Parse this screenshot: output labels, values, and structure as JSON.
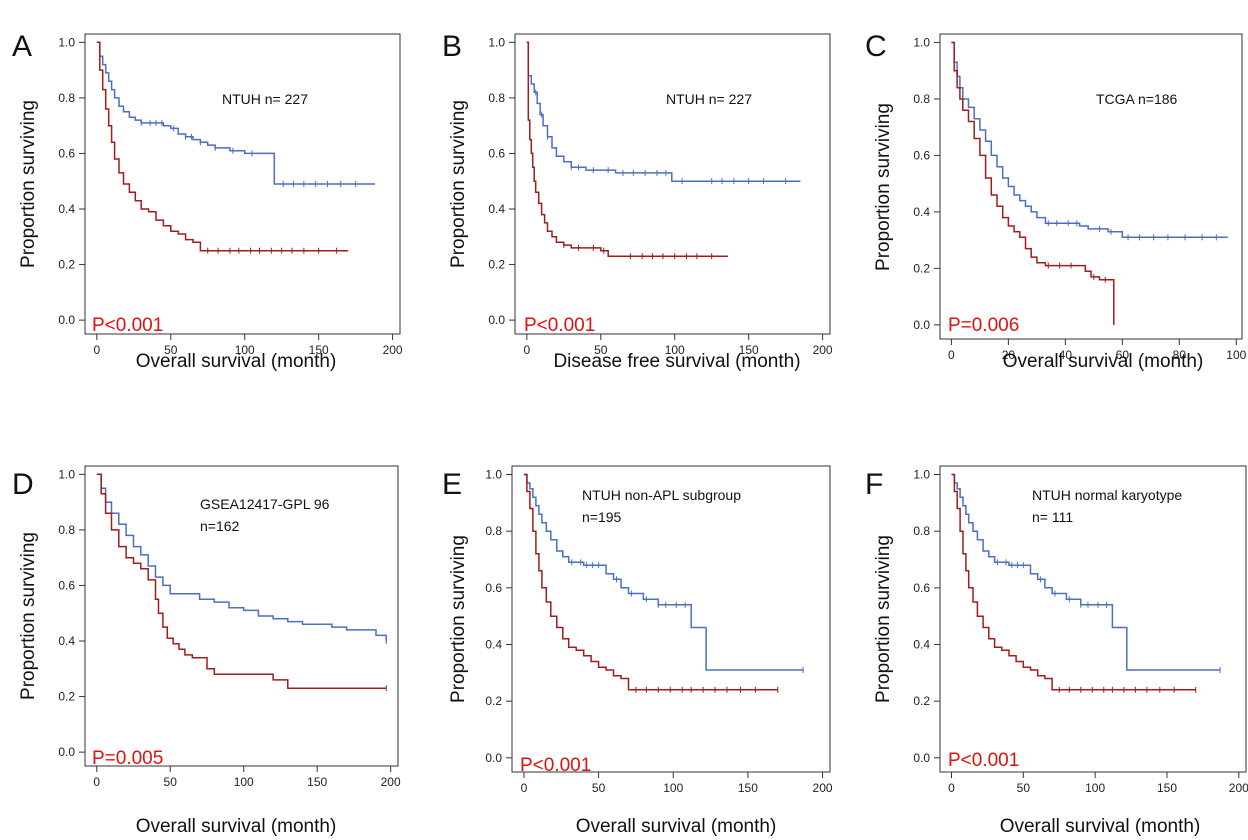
{
  "figure": {
    "panels": [
      "A",
      "B",
      "C",
      "D",
      "E",
      "F"
    ]
  },
  "colors": {
    "low_group": "#4a6fc3",
    "high_group": "#a11c1c",
    "pvalue": "#e01010",
    "frame": "#333333"
  },
  "chart_data": [
    {
      "type": "line",
      "panel": "A",
      "annotation": [
        "NTUH  n= 227"
      ],
      "pvalue": "P<0.001",
      "xlabel": "Overall survival (month)",
      "ylabel": "Proportion surviving",
      "xlim": [
        -8,
        205
      ],
      "ylim": [
        -0.05,
        1.03
      ],
      "xticks": [
        0,
        50,
        100,
        150,
        200
      ],
      "yticks": [
        0.0,
        0.2,
        0.4,
        0.6,
        0.8,
        1.0
      ],
      "series": [
        {
          "color": "#4a6fc3",
          "x": [
            0,
            2,
            4,
            6,
            8,
            10,
            12,
            15,
            18,
            22,
            26,
            30,
            35,
            40,
            45,
            50,
            55,
            60,
            65,
            70,
            75,
            80,
            90,
            100,
            110,
            119,
            120,
            130,
            150,
            188
          ],
          "y": [
            1.0,
            0.95,
            0.92,
            0.89,
            0.86,
            0.83,
            0.8,
            0.77,
            0.75,
            0.73,
            0.72,
            0.71,
            0.71,
            0.71,
            0.7,
            0.69,
            0.67,
            0.66,
            0.65,
            0.64,
            0.63,
            0.62,
            0.61,
            0.6,
            0.6,
            0.6,
            0.49,
            0.49,
            0.49,
            0.49
          ],
          "censors": [
            30,
            36,
            40,
            44,
            52,
            60,
            64,
            70,
            80,
            92,
            105,
            126,
            133,
            140,
            148,
            156,
            165,
            175
          ]
        },
        {
          "color": "#a11c1c",
          "x": [
            0,
            2,
            4,
            6,
            8,
            10,
            12,
            15,
            18,
            22,
            26,
            30,
            35,
            40,
            45,
            50,
            55,
            60,
            65,
            70,
            80,
            100,
            130,
            170
          ],
          "y": [
            1.0,
            0.9,
            0.83,
            0.76,
            0.7,
            0.64,
            0.58,
            0.53,
            0.49,
            0.46,
            0.43,
            0.4,
            0.39,
            0.36,
            0.34,
            0.32,
            0.31,
            0.29,
            0.28,
            0.25,
            0.25,
            0.25,
            0.25,
            0.25
          ],
          "censors": [
            75,
            82,
            90,
            96,
            104,
            110,
            118,
            125,
            132,
            140,
            150,
            162
          ]
        }
      ]
    },
    {
      "type": "line",
      "panel": "B",
      "annotation": [
        "NTUH n= 227"
      ],
      "pvalue": "P<0.001",
      "xlabel": "Disease free survival (month)",
      "ylabel": "Proportion surviving",
      "xlim": [
        -8,
        205
      ],
      "ylim": [
        -0.05,
        1.03
      ],
      "xticks": [
        0,
        50,
        100,
        150,
        200
      ],
      "yticks": [
        0.0,
        0.2,
        0.4,
        0.6,
        0.8,
        1.0
      ],
      "series": [
        {
          "color": "#4a6fc3",
          "x": [
            0,
            1,
            3,
            5,
            7,
            9,
            11,
            14,
            17,
            20,
            25,
            30,
            40,
            50,
            60,
            70,
            80,
            90,
            97,
            98,
            120,
            150,
            185
          ],
          "y": [
            1.0,
            0.88,
            0.85,
            0.82,
            0.78,
            0.74,
            0.7,
            0.66,
            0.62,
            0.59,
            0.57,
            0.55,
            0.54,
            0.54,
            0.53,
            0.53,
            0.53,
            0.53,
            0.53,
            0.5,
            0.5,
            0.5,
            0.5
          ],
          "censors": [
            6,
            10,
            14,
            30,
            35,
            45,
            55,
            65,
            72,
            80,
            88,
            94,
            105,
            125,
            132,
            140,
            150,
            160,
            175
          ]
        },
        {
          "color": "#a11c1c",
          "x": [
            0,
            1,
            2,
            3,
            4,
            5,
            6,
            8,
            10,
            12,
            14,
            17,
            20,
            25,
            30,
            40,
            50,
            55,
            60,
            80,
            100,
            136
          ],
          "y": [
            1.0,
            0.72,
            0.65,
            0.6,
            0.55,
            0.5,
            0.46,
            0.42,
            0.38,
            0.35,
            0.32,
            0.3,
            0.28,
            0.27,
            0.26,
            0.26,
            0.25,
            0.23,
            0.23,
            0.23,
            0.23,
            0.23
          ],
          "censors": [
            25,
            35,
            45,
            52,
            70,
            78,
            85,
            92,
            100,
            108,
            115,
            125
          ]
        }
      ]
    },
    {
      "type": "line",
      "panel": "C",
      "annotation": [
        "TCGA n=186"
      ],
      "pvalue": "P=0.006",
      "xlabel": "Overall survival (month)",
      "ylabel": "Proportion surviving",
      "xlim": [
        -4,
        102
      ],
      "ylim": [
        -0.05,
        1.03
      ],
      "xticks": [
        0,
        20,
        40,
        60,
        80,
        100
      ],
      "yticks": [
        0.0,
        0.2,
        0.4,
        0.6,
        0.8,
        1.0
      ],
      "series": [
        {
          "color": "#4a6fc3",
          "x": [
            0,
            1,
            2,
            3,
            4,
            6,
            8,
            10,
            12,
            14,
            16,
            18,
            20,
            22,
            24,
            26,
            28,
            30,
            33,
            36,
            40,
            45,
            48,
            50,
            55,
            60,
            70,
            80,
            97
          ],
          "y": [
            1.0,
            0.93,
            0.88,
            0.84,
            0.8,
            0.77,
            0.73,
            0.69,
            0.65,
            0.6,
            0.56,
            0.52,
            0.49,
            0.46,
            0.44,
            0.42,
            0.4,
            0.38,
            0.36,
            0.36,
            0.36,
            0.35,
            0.34,
            0.34,
            0.33,
            0.31,
            0.31,
            0.31,
            0.31
          ],
          "censors": [
            34,
            37,
            41,
            44,
            52,
            56,
            62,
            66,
            71,
            76,
            82,
            88,
            93
          ]
        },
        {
          "color": "#a11c1c",
          "x": [
            0,
            1,
            2,
            3,
            4,
            6,
            8,
            10,
            12,
            14,
            16,
            18,
            20,
            22,
            24,
            26,
            28,
            30,
            33,
            36,
            40,
            45,
            47,
            49,
            52,
            56,
            57,
            57
          ],
          "y": [
            1.0,
            0.9,
            0.84,
            0.8,
            0.76,
            0.72,
            0.66,
            0.6,
            0.52,
            0.46,
            0.42,
            0.38,
            0.35,
            0.33,
            0.31,
            0.27,
            0.24,
            0.22,
            0.21,
            0.21,
            0.21,
            0.21,
            0.19,
            0.17,
            0.16,
            0.16,
            0.16,
            0.0
          ],
          "censors": [
            34,
            38,
            42,
            50,
            54
          ]
        }
      ]
    },
    {
      "type": "line",
      "panel": "D",
      "annotation": [
        "GSEA12417-GPL 96",
        "n=162"
      ],
      "pvalue": "P=0.005",
      "xlabel": "Overall survival (month)",
      "ylabel": "Proportion surviving",
      "xlim": [
        -8,
        205
      ],
      "ylim": [
        -0.05,
        1.03
      ],
      "xticks": [
        0,
        50,
        100,
        150,
        200
      ],
      "yticks": [
        0.0,
        0.2,
        0.4,
        0.6,
        0.8,
        1.0
      ],
      "series": [
        {
          "color": "#4a6fc3",
          "x": [
            0,
            3,
            6,
            10,
            15,
            20,
            25,
            30,
            35,
            40,
            45,
            50,
            60,
            70,
            80,
            90,
            100,
            110,
            120,
            130,
            140,
            150,
            160,
            170,
            180,
            190,
            197
          ],
          "y": [
            1.0,
            0.95,
            0.9,
            0.86,
            0.82,
            0.78,
            0.74,
            0.71,
            0.67,
            0.63,
            0.6,
            0.57,
            0.57,
            0.55,
            0.54,
            0.52,
            0.51,
            0.49,
            0.48,
            0.47,
            0.46,
            0.46,
            0.45,
            0.44,
            0.44,
            0.42,
            0.4
          ],
          "censors": [
            197
          ]
        },
        {
          "color": "#a11c1c",
          "x": [
            0,
            3,
            6,
            10,
            15,
            20,
            25,
            30,
            35,
            40,
            42,
            45,
            48,
            52,
            56,
            60,
            65,
            70,
            75,
            80,
            90,
            100,
            110,
            120,
            130,
            140,
            150,
            160,
            170,
            180,
            190,
            197
          ],
          "y": [
            1.0,
            0.93,
            0.86,
            0.8,
            0.74,
            0.7,
            0.68,
            0.66,
            0.62,
            0.55,
            0.5,
            0.45,
            0.41,
            0.39,
            0.37,
            0.35,
            0.34,
            0.34,
            0.3,
            0.28,
            0.28,
            0.28,
            0.28,
            0.26,
            0.23,
            0.23,
            0.23,
            0.23,
            0.23,
            0.23,
            0.23,
            0.23
          ],
          "censors": [
            197
          ]
        }
      ]
    },
    {
      "type": "line",
      "panel": "E",
      "annotation": [
        "NTUH non-APL subgroup",
        "n=195"
      ],
      "pvalue": "P<0.001",
      "xlabel": "Overall survival (month)",
      "ylabel": "Proportion surviving",
      "xlim": [
        -8,
        205
      ],
      "ylim": [
        -0.05,
        1.03
      ],
      "xticks": [
        0,
        50,
        100,
        150,
        200
      ],
      "yticks": [
        0.0,
        0.2,
        0.4,
        0.6,
        0.8,
        1.0
      ],
      "series": [
        {
          "color": "#4a6fc3",
          "x": [
            0,
            2,
            4,
            6,
            8,
            10,
            12,
            15,
            18,
            22,
            26,
            30,
            40,
            50,
            55,
            60,
            65,
            70,
            80,
            90,
            100,
            110,
            112,
            120,
            122,
            150,
            187
          ],
          "y": [
            1.0,
            0.97,
            0.95,
            0.92,
            0.89,
            0.86,
            0.83,
            0.8,
            0.77,
            0.73,
            0.71,
            0.69,
            0.68,
            0.68,
            0.65,
            0.63,
            0.6,
            0.58,
            0.56,
            0.54,
            0.54,
            0.54,
            0.46,
            0.46,
            0.31,
            0.31,
            0.31
          ],
          "censors": [
            32,
            38,
            42,
            46,
            50,
            62,
            72,
            82,
            90,
            95,
            102,
            108,
            187
          ]
        },
        {
          "color": "#a11c1c",
          "x": [
            0,
            2,
            4,
            6,
            8,
            10,
            12,
            15,
            18,
            22,
            26,
            30,
            35,
            40,
            45,
            50,
            55,
            60,
            65,
            70,
            80,
            100,
            130,
            170
          ],
          "y": [
            1.0,
            0.94,
            0.88,
            0.8,
            0.72,
            0.66,
            0.6,
            0.55,
            0.5,
            0.46,
            0.42,
            0.39,
            0.38,
            0.36,
            0.34,
            0.32,
            0.31,
            0.29,
            0.28,
            0.24,
            0.24,
            0.24,
            0.24,
            0.24
          ],
          "censors": [
            75,
            82,
            90,
            98,
            106,
            112,
            120,
            128,
            136,
            145,
            155,
            170
          ]
        }
      ]
    },
    {
      "type": "line",
      "panel": "F",
      "annotation": [
        "NTUH normal karyotype",
        "n= 111"
      ],
      "pvalue": "P<0.001",
      "xlabel": "Overall survival (month)",
      "ylabel": "Proportion surviving",
      "xlim": [
        -8,
        205
      ],
      "ylim": [
        -0.05,
        1.03
      ],
      "xticks": [
        0,
        50,
        100,
        150,
        200
      ],
      "yticks": [
        0.0,
        0.2,
        0.4,
        0.6,
        0.8,
        1.0
      ],
      "series": [
        {
          "color": "#4a6fc3",
          "x": [
            0,
            2,
            4,
            6,
            8,
            10,
            12,
            15,
            18,
            22,
            26,
            30,
            40,
            50,
            55,
            60,
            65,
            70,
            80,
            90,
            100,
            110,
            112,
            120,
            122,
            150,
            187
          ],
          "y": [
            1.0,
            0.97,
            0.95,
            0.92,
            0.89,
            0.86,
            0.83,
            0.8,
            0.77,
            0.73,
            0.71,
            0.69,
            0.68,
            0.68,
            0.65,
            0.63,
            0.6,
            0.58,
            0.56,
            0.54,
            0.54,
            0.54,
            0.46,
            0.46,
            0.31,
            0.31,
            0.31
          ],
          "censors": [
            32,
            38,
            42,
            46,
            50,
            62,
            72,
            82,
            90,
            95,
            102,
            108,
            187
          ]
        },
        {
          "color": "#a11c1c",
          "x": [
            0,
            2,
            4,
            6,
            8,
            10,
            12,
            15,
            18,
            22,
            26,
            30,
            35,
            40,
            45,
            50,
            55,
            60,
            65,
            70,
            80,
            100,
            130,
            170
          ],
          "y": [
            1.0,
            0.94,
            0.88,
            0.8,
            0.72,
            0.66,
            0.6,
            0.55,
            0.5,
            0.46,
            0.42,
            0.39,
            0.38,
            0.36,
            0.34,
            0.32,
            0.31,
            0.29,
            0.28,
            0.24,
            0.24,
            0.24,
            0.24,
            0.24
          ],
          "censors": [
            75,
            82,
            90,
            98,
            106,
            112,
            120,
            128,
            136,
            145,
            155,
            170
          ]
        }
      ]
    }
  ]
}
